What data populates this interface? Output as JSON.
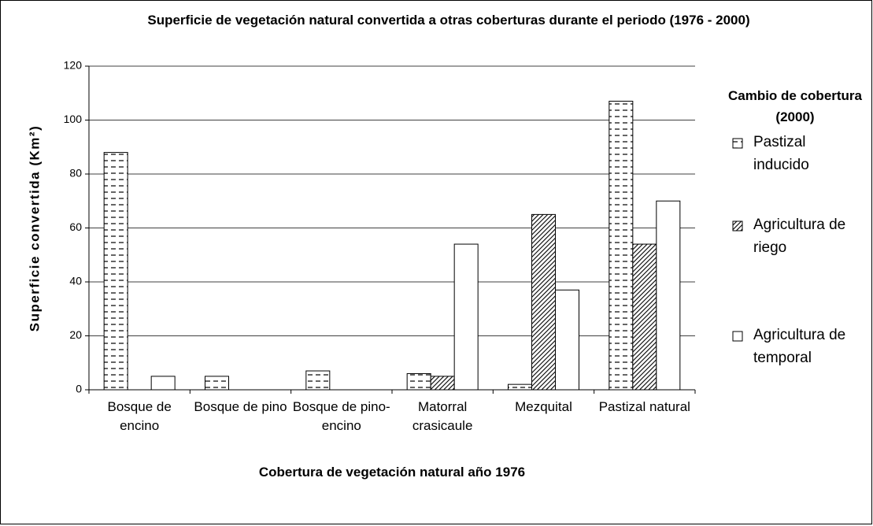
{
  "chart_data": {
    "type": "bar",
    "title": "Superficie de vegetación natural convertida a otras coberturas durante el periodo (1976 - 2000)",
    "x_label": "Cobertura de vegetación natural año 1976",
    "y_label": "Superficie convertida (Km²)",
    "legend_title": "Cambio de cobertura (2000)",
    "legend_position": "right",
    "categories": [
      "Bosque de encino",
      "Bosque de pino",
      "Bosque de pino-encino",
      "Matorral crasicaule",
      "Mezquital",
      "Pastizal natural"
    ],
    "series": [
      {
        "name": "Pastizal inducido",
        "color": "#ffffff",
        "pattern": "dashes",
        "values": [
          88,
          5,
          7,
          6,
          2,
          107
        ]
      },
      {
        "name": "Agricultura de riego",
        "color": "#ffffff",
        "pattern": "hatch",
        "values": [
          0,
          0,
          0,
          5,
          65,
          54
        ]
      },
      {
        "name": "Agricultura de temporal",
        "color": "#ffffff",
        "pattern": "none",
        "values": [
          5,
          0,
          0,
          54,
          37,
          70
        ]
      }
    ],
    "ylim": [
      0,
      120
    ],
    "yticks": [
      0,
      20,
      40,
      60,
      80,
      100,
      120
    ],
    "grid": true
  }
}
